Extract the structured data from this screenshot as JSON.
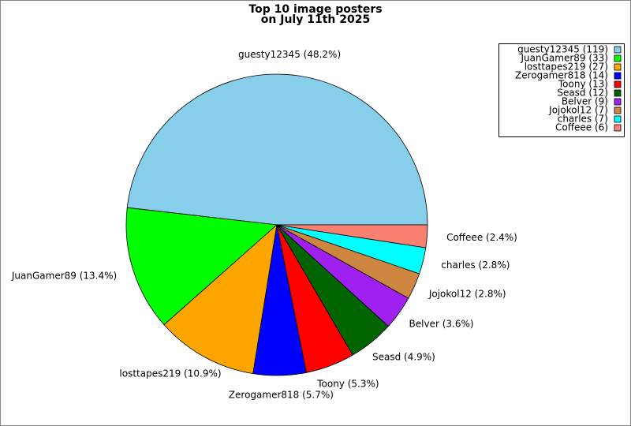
{
  "chart_data": {
    "type": "pie",
    "title": "Top 10 image posters",
    "subtitle": "on July 11th 2025",
    "categories": [
      "guesty12345",
      "JuanGamer89",
      "losttapes219",
      "Zerogamer818",
      "Toony",
      "Seasd",
      "Belver",
      "Jojokol12",
      "charles",
      "Coffeee"
    ],
    "values": [
      119,
      33,
      27,
      14,
      13,
      12,
      9,
      7,
      7,
      6
    ],
    "value_labels": [
      "guesty12345 (48.2%)",
      "JuanGamer89 (13.4%)",
      "losttapes219 (10.9%)",
      "Zerogamer818 (5.7%)",
      "Toony (5.3%)",
      "Seasd (4.9%)",
      "Belver (3.6%)",
      "Jojokol12 (2.8%)",
      "charles (2.8%)",
      "Coffeee (2.4%)"
    ],
    "legend_labels": [
      "guesty12345 (119)",
      "JuanGamer89 (33)",
      "losttapes219 (27)",
      "Zerogamer818 (14)",
      "Toony (13)",
      "Seasd (12)",
      "Belver (9)",
      "Jojokol12 (7)",
      "charles (7)",
      "Coffeee (6)"
    ],
    "colors": [
      "#87ceeb",
      "#00ff00",
      "#ffa500",
      "#0000ff",
      "#ff0000",
      "#006400",
      "#a020f0",
      "#cd853f",
      "#00ffff",
      "#fa8072"
    ],
    "legend": "top-right"
  }
}
